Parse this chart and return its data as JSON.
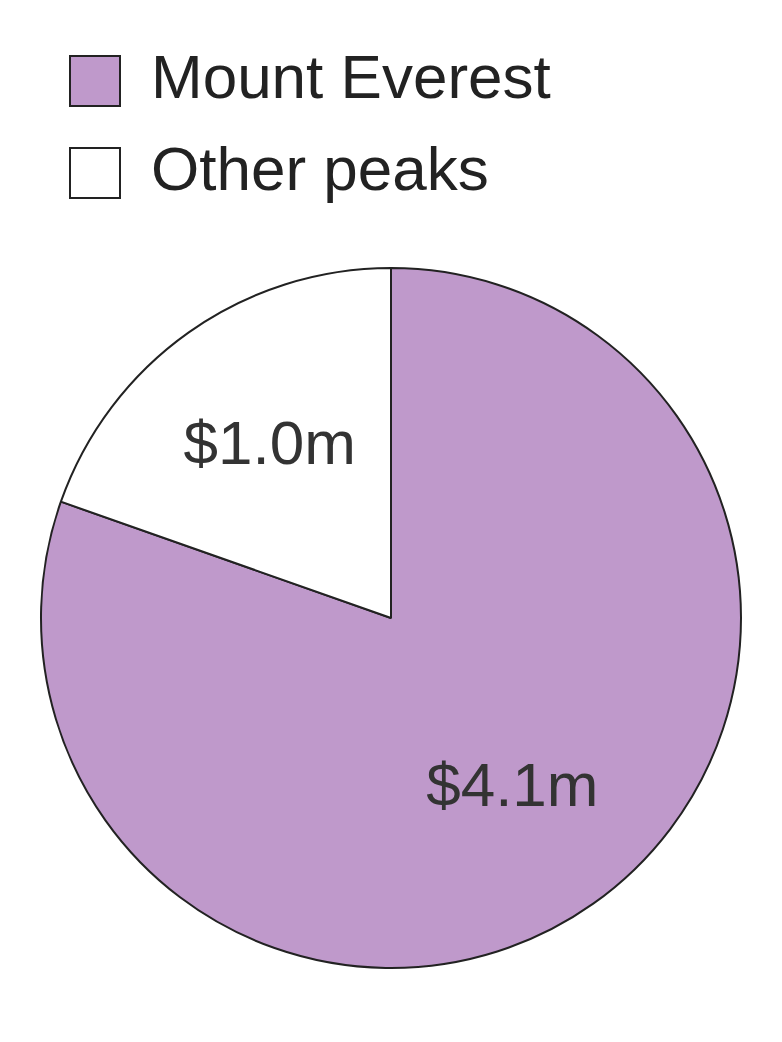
{
  "chart_data": {
    "type": "pie",
    "categories": [
      "Mount Everest",
      "Other peaks"
    ],
    "values": [
      4.1,
      1.0
    ],
    "colors": [
      "#bf99cb",
      "#ffffff"
    ],
    "value_labels": [
      "$4.1m",
      "$1.0m"
    ],
    "legend": "top left"
  }
}
